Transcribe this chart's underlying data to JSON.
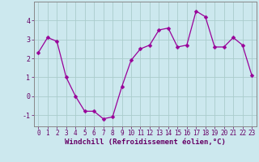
{
  "x": [
    0,
    1,
    2,
    3,
    4,
    5,
    6,
    7,
    8,
    9,
    10,
    11,
    12,
    13,
    14,
    15,
    16,
    17,
    18,
    19,
    20,
    21,
    22,
    23
  ],
  "y": [
    2.3,
    3.1,
    2.9,
    1.0,
    0.0,
    -0.8,
    -0.8,
    -1.2,
    -1.1,
    0.5,
    1.9,
    2.5,
    2.7,
    3.5,
    3.6,
    2.6,
    2.7,
    4.5,
    4.2,
    2.6,
    2.6,
    3.1,
    2.7,
    1.1
  ],
  "line_color": "#990099",
  "marker": "D",
  "marker_size": 2.5,
  "background_color": "#cce8ee",
  "grid_color": "#aacccc",
  "xlabel": "Windchill (Refroidissement éolien,°C)",
  "xlabel_color": "#660066",
  "tick_color": "#660066",
  "spine_color": "#888888",
  "ylim": [
    -1.6,
    5.0
  ],
  "xlim": [
    -0.5,
    23.5
  ],
  "yticks": [
    -1,
    0,
    1,
    2,
    3,
    4
  ],
  "xticks": [
    0,
    1,
    2,
    3,
    4,
    5,
    6,
    7,
    8,
    9,
    10,
    11,
    12,
    13,
    14,
    15,
    16,
    17,
    18,
    19,
    20,
    21,
    22,
    23
  ],
  "tick_fontsize": 5.5,
  "xlabel_fontsize": 6.5
}
